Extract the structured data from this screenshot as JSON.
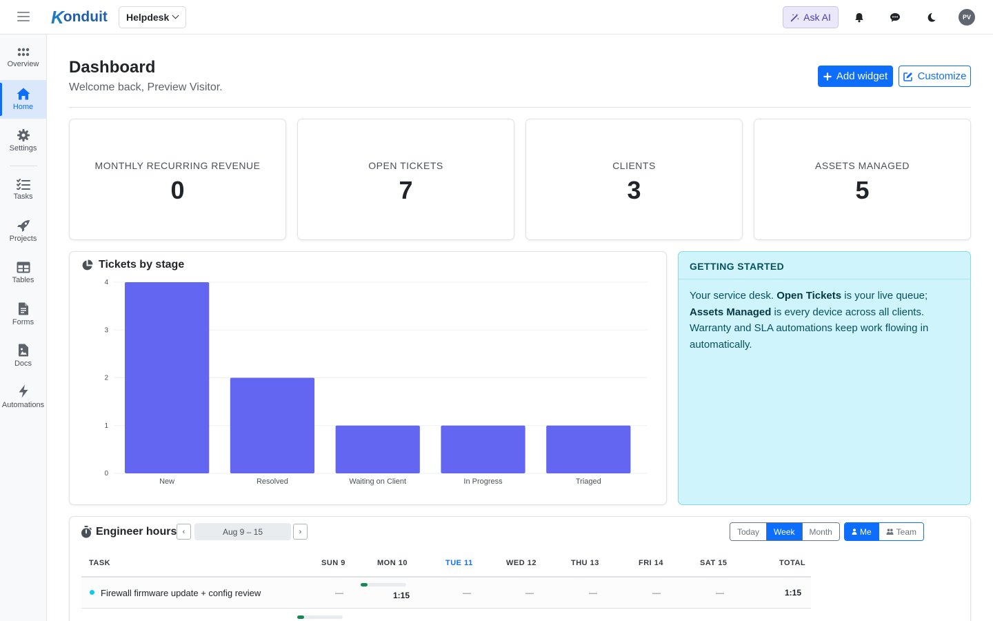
{
  "topbar": {
    "brand": "onduit",
    "workspace": "Helpdesk",
    "ask_ai": "Ask AI",
    "avatar_initials": "PV"
  },
  "sidebar": {
    "items": [
      {
        "label": "Overview",
        "icon": "grid-icon"
      },
      {
        "label": "Home",
        "icon": "home-icon",
        "active": true
      },
      {
        "label": "Settings",
        "icon": "gear-icon"
      },
      {
        "label": "Tasks",
        "icon": "checklist-icon"
      },
      {
        "label": "Projects",
        "icon": "rocket-icon"
      },
      {
        "label": "Tables",
        "icon": "table-icon"
      },
      {
        "label": "Forms",
        "icon": "form-icon"
      },
      {
        "label": "Docs",
        "icon": "doc-icon"
      },
      {
        "label": "Automations",
        "icon": "bolt-icon"
      }
    ]
  },
  "header": {
    "title": "Dashboard",
    "subtitle": "Welcome back, Preview Visitor.",
    "add_widget": "Add widget",
    "customize": "Customize"
  },
  "stats": [
    {
      "label": "MONTHLY RECURRING REVENUE",
      "value": "0"
    },
    {
      "label": "OPEN TICKETS",
      "value": "7"
    },
    {
      "label": "CLIENTS",
      "value": "3"
    },
    {
      "label": "ASSETS MANAGED",
      "value": "5"
    }
  ],
  "chart_widget": {
    "title": "Tickets by stage"
  },
  "chart_data": {
    "type": "bar",
    "title": "Tickets by stage",
    "categories": [
      "New",
      "Resolved",
      "Waiting on Client",
      "In Progress",
      "Triaged"
    ],
    "values": [
      4,
      2,
      1,
      1,
      1
    ],
    "ylim": [
      0,
      4
    ],
    "yticks": [
      "0",
      "1",
      "2",
      "3",
      "4"
    ],
    "color": "#6366f1",
    "grid": true
  },
  "getting_started": {
    "title": "GETTING STARTED",
    "p1": "Your service desk. ",
    "b1": "Open Tickets",
    "p2": " is your live queue; ",
    "b2": "Assets Managed",
    "p3": " is every device across all clients. Warranty and SLA automations keep work flowing in automatically."
  },
  "engineer_hours": {
    "title": "Engineer hours",
    "prev": "‹",
    "next": "›",
    "range": "Aug 9 – 15",
    "periods": [
      "Today",
      "Week",
      "Month"
    ],
    "period_active": "Week",
    "scope": [
      "Me",
      "Team"
    ],
    "scope_active": "Me",
    "columns": [
      "TASK",
      "SUN 9",
      "MON 10",
      "TUE 11",
      "WED 12",
      "THU 13",
      "FRI 14",
      "SAT 15",
      "TOTAL"
    ],
    "today_column": "TUE 11",
    "rows": [
      {
        "task": "Firewall firmware update + config review",
        "cells": [
          "—",
          "1:15",
          "—",
          "—",
          "—",
          "—",
          "—"
        ],
        "total": "1:15",
        "mon_progress": 0.15
      }
    ]
  },
  "colors": {
    "accent": "#0d6efd",
    "bar": "#6366f1",
    "info_bg": "#cff4fc"
  }
}
